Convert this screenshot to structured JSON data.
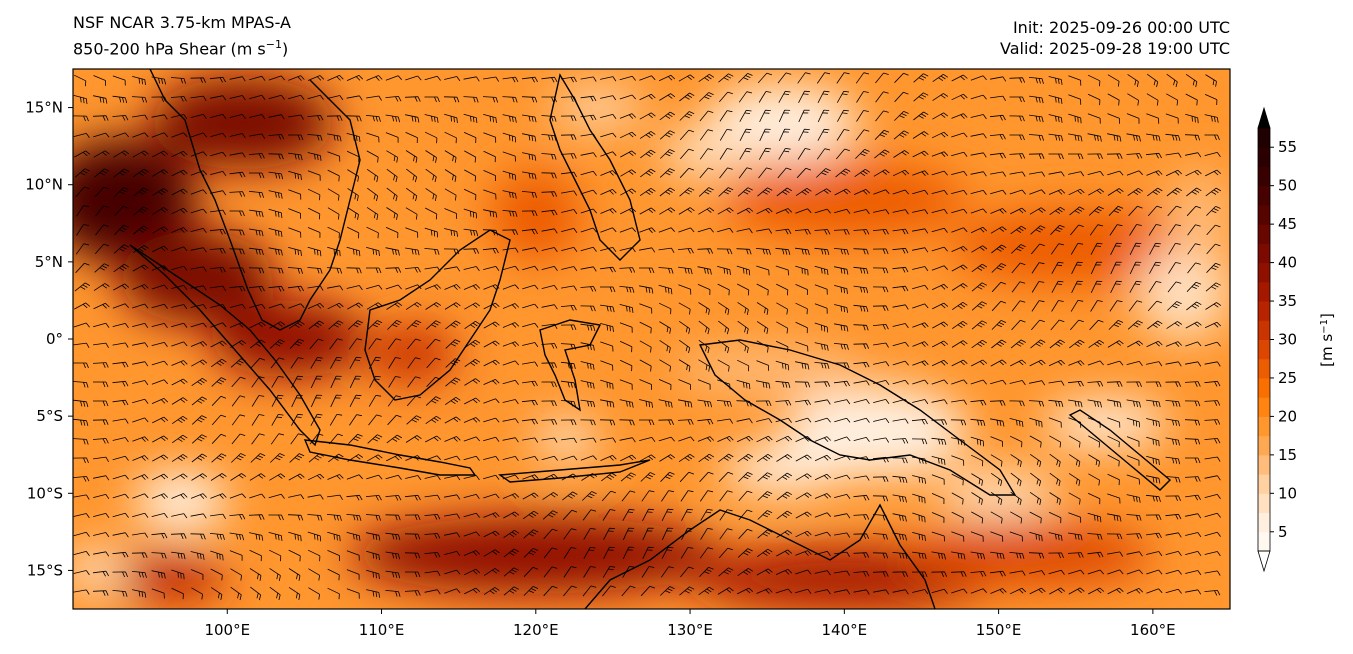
{
  "title": {
    "model": "NSF NCAR 3.75-km MPAS-A",
    "field_prefix": "850-200 hPa Shear (m s",
    "field_exp": "−1",
    "field_suffix": ")",
    "init": "Init: 2025-09-26 00:00 UTC",
    "valid": "Valid: 2025-09-28 19:00 UTC"
  },
  "map": {
    "lon_range": [
      90,
      165
    ],
    "lat_range": [
      -17.5,
      17.5
    ],
    "lon_ticks": [
      {
        "value": 100,
        "label": "100°E"
      },
      {
        "value": 110,
        "label": "110°E"
      },
      {
        "value": 120,
        "label": "120°E"
      },
      {
        "value": 130,
        "label": "130°E"
      },
      {
        "value": 140,
        "label": "140°E"
      },
      {
        "value": 150,
        "label": "150°E"
      },
      {
        "value": 160,
        "label": "160°E"
      }
    ],
    "lat_ticks": [
      {
        "value": 15,
        "label": "15°N"
      },
      {
        "value": 10,
        "label": "10°N"
      },
      {
        "value": 5,
        "label": "5°N"
      },
      {
        "value": 0,
        "label": "0°"
      },
      {
        "value": -5,
        "label": "5°S"
      },
      {
        "value": -10,
        "label": "10°S"
      },
      {
        "value": -15,
        "label": "15°S"
      }
    ]
  },
  "colorbar": {
    "label_prefix": "[m s",
    "label_exp": "−1",
    "label_suffix": "]",
    "ticks": [
      5,
      10,
      15,
      20,
      25,
      30,
      35,
      40,
      45,
      50,
      55
    ],
    "levels": [
      2.5,
      5,
      7.5,
      10,
      12.5,
      15,
      17.5,
      20,
      22.5,
      25,
      27.5,
      30,
      32.5,
      35,
      37.5,
      40,
      42.5,
      45,
      47.5,
      50,
      52.5,
      55,
      57.5
    ],
    "colors": [
      "#fff8f0",
      "#ffefdf",
      "#ffe0c0",
      "#ffd0a0",
      "#ffbc7a",
      "#ffa852",
      "#ff962e",
      "#ff8410",
      "#f97000",
      "#ec5c00",
      "#dc4600",
      "#ca3400",
      "#b82400",
      "#a41800",
      "#901000",
      "#7c0a00",
      "#680600",
      "#560400",
      "#460200",
      "#380000",
      "#2c0000",
      "#200000"
    ],
    "min_color": "#ffffff",
    "max_color": "#000000"
  },
  "regions": [
    {
      "lon": 93,
      "lat": 9,
      "rx": 5,
      "ry": 4,
      "level": 18
    },
    {
      "lon": 101,
      "lat": 14,
      "rx": 6,
      "ry": 3,
      "level": 15
    },
    {
      "lon": 98,
      "lat": 4,
      "rx": 5,
      "ry": 3,
      "level": 15
    },
    {
      "lon": 104,
      "lat": 0,
      "rx": 5,
      "ry": 2.5,
      "level": 14
    },
    {
      "lon": 112,
      "lat": -1,
      "rx": 3,
      "ry": 2,
      "level": 11
    },
    {
      "lon": 120,
      "lat": -14,
      "rx": 12,
      "ry": 2.5,
      "level": 14
    },
    {
      "lon": 140,
      "lat": -15.5,
      "rx": 10,
      "ry": 2,
      "level": 13
    },
    {
      "lon": 152,
      "lat": -14,
      "rx": 8,
      "ry": 2,
      "level": 10
    },
    {
      "lon": 96,
      "lat": -15.5,
      "rx": 4,
      "ry": 1.5,
      "level": 12
    },
    {
      "lon": 140,
      "lat": 9,
      "rx": 8,
      "ry": 2.5,
      "level": 9
    },
    {
      "lon": 155,
      "lat": 6,
      "rx": 8,
      "ry": 2.5,
      "level": 9
    },
    {
      "lon": 120,
      "lat": 8,
      "rx": 3,
      "ry": 3,
      "level": 9
    },
    {
      "lon": 136,
      "lat": 14,
      "rx": 5,
      "ry": 2.5,
      "level": 1
    },
    {
      "lon": 131,
      "lat": 12,
      "rx": 3,
      "ry": 1.5,
      "level": 2
    },
    {
      "lon": 124,
      "lat": 15,
      "rx": 3,
      "ry": 1.5,
      "level": 3
    },
    {
      "lon": 142,
      "lat": -6,
      "rx": 6,
      "ry": 3,
      "level": 1
    },
    {
      "lon": 136,
      "lat": -8.5,
      "rx": 4,
      "ry": 1.5,
      "level": 1
    },
    {
      "lon": 157,
      "lat": -5.5,
      "rx": 4,
      "ry": 1.5,
      "level": 1
    },
    {
      "lon": 150,
      "lat": -10,
      "rx": 4,
      "ry": 1.5,
      "level": 2
    },
    {
      "lon": 97,
      "lat": -10.5,
      "rx": 3,
      "ry": 2,
      "level": 1
    },
    {
      "lon": 162,
      "lat": 3,
      "rx": 3,
      "ry": 3,
      "level": 2
    },
    {
      "lon": 122,
      "lat": -6.5,
      "rx": 2,
      "ry": 1.5,
      "level": 2
    },
    {
      "lon": 135,
      "lat": -2,
      "rx": 6,
      "ry": 1.5,
      "level": 4
    },
    {
      "lon": 163,
      "lat": 8,
      "rx": 2,
      "ry": 3,
      "level": 4
    },
    {
      "lon": 91.5,
      "lat": -15,
      "rx": 2,
      "ry": 1.5,
      "level": 2
    }
  ]
}
